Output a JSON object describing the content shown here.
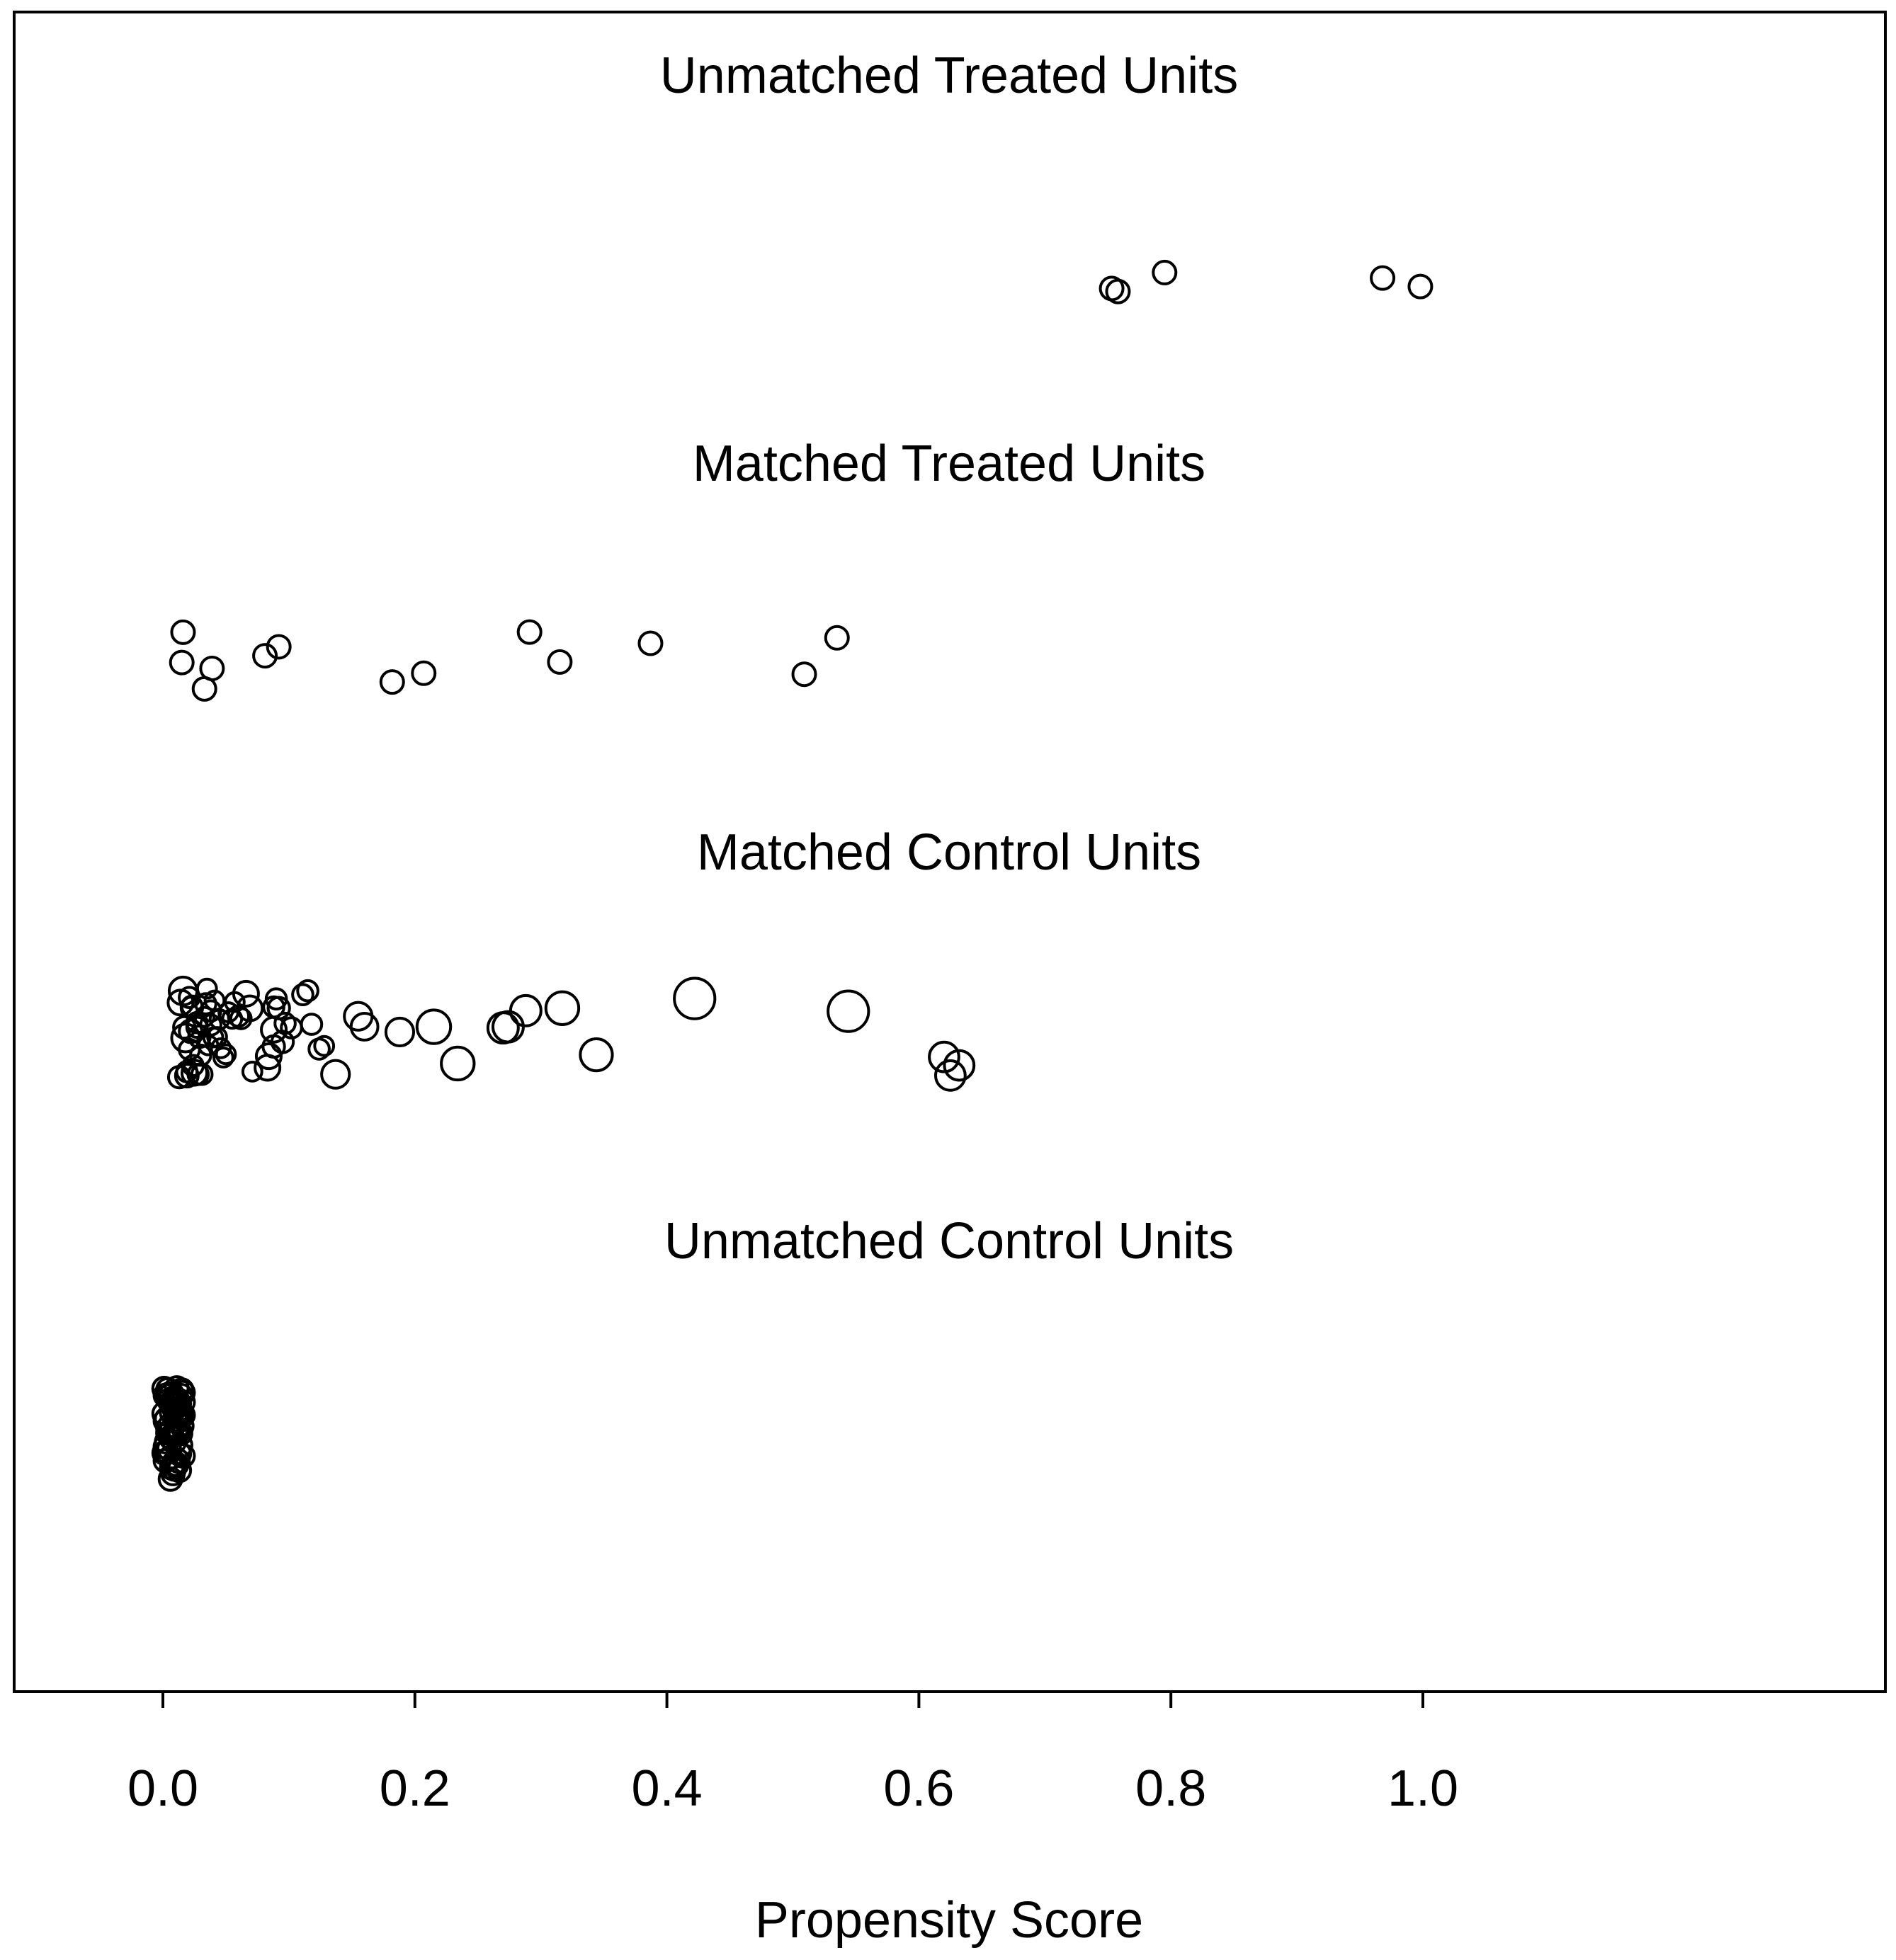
{
  "chart_data": {
    "type": "scatter",
    "title": "",
    "xlabel": "Propensity Score",
    "ylabel": "",
    "xlim": [
      -0.095,
      1.095
    ],
    "xticks": [
      "0.0",
      "0.2",
      "0.4",
      "0.6",
      "0.8",
      "1.0"
    ],
    "xtick_values": [
      0.0,
      0.2,
      0.4,
      0.6,
      0.8,
      1.0
    ],
    "grid": false,
    "legend": "none",
    "marker": "open circle, size proportional to weight",
    "groups": [
      {
        "label": "Unmatched Treated Units",
        "points": [
          {
            "x": 0.753,
            "w": 1
          },
          {
            "x": 0.758,
            "w": 1
          },
          {
            "x": 0.795,
            "w": 1
          },
          {
            "x": 0.968,
            "w": 1
          },
          {
            "x": 0.998,
            "w": 1
          }
        ]
      },
      {
        "label": "Matched Treated Units",
        "points": [
          {
            "x": 0.015,
            "w": 1
          },
          {
            "x": 0.016,
            "w": 1
          },
          {
            "x": 0.033,
            "w": 1
          },
          {
            "x": 0.039,
            "w": 1
          },
          {
            "x": 0.081,
            "w": 1
          },
          {
            "x": 0.092,
            "w": 1
          },
          {
            "x": 0.182,
            "w": 1
          },
          {
            "x": 0.207,
            "w": 1
          },
          {
            "x": 0.291,
            "w": 1
          },
          {
            "x": 0.315,
            "w": 1
          },
          {
            "x": 0.387,
            "w": 1
          },
          {
            "x": 0.509,
            "w": 1
          },
          {
            "x": 0.535,
            "w": 1
          }
        ]
      },
      {
        "label": "Matched Control Units",
        "points": [
          {
            "x": 0.018,
            "w": 1.5
          },
          {
            "x": 0.022,
            "w": 1
          },
          {
            "x": 0.014,
            "w": 1.2
          },
          {
            "x": 0.016,
            "w": 1.5
          },
          {
            "x": 0.025,
            "w": 1.2
          },
          {
            "x": 0.019,
            "w": 1
          },
          {
            "x": 0.021,
            "w": 0.8
          },
          {
            "x": 0.027,
            "w": 0.8
          },
          {
            "x": 0.031,
            "w": 0.8
          },
          {
            "x": 0.034,
            "w": 0.8
          },
          {
            "x": 0.038,
            "w": 0.8
          },
          {
            "x": 0.043,
            "w": 0.7
          },
          {
            "x": 0.046,
            "w": 0.7
          },
          {
            "x": 0.052,
            "w": 0.7
          },
          {
            "x": 0.057,
            "w": 0.7
          },
          {
            "x": 0.013,
            "w": 0.9
          },
          {
            "x": 0.017,
            "w": 0.9
          },
          {
            "x": 0.023,
            "w": 0.9
          },
          {
            "x": 0.029,
            "w": 0.9
          },
          {
            "x": 0.033,
            "w": 0.7
          },
          {
            "x": 0.041,
            "w": 0.7
          },
          {
            "x": 0.048,
            "w": 0.7
          },
          {
            "x": 0.055,
            "w": 0.7
          },
          {
            "x": 0.062,
            "w": 0.8
          },
          {
            "x": 0.066,
            "w": 1.2
          },
          {
            "x": 0.071,
            "w": 0.7
          },
          {
            "x": 0.069,
            "w": 1.2
          },
          {
            "x": 0.083,
            "w": 1.2
          },
          {
            "x": 0.088,
            "w": 1.2
          },
          {
            "x": 0.092,
            "w": 0.9
          },
          {
            "x": 0.095,
            "w": 0.9
          },
          {
            "x": 0.097,
            "w": 0.8
          },
          {
            "x": 0.084,
            "w": 1.2
          },
          {
            "x": 0.088,
            "w": 0.9
          },
          {
            "x": 0.09,
            "w": 0.8
          },
          {
            "x": 0.088,
            "w": 0.8
          },
          {
            "x": 0.102,
            "w": 0.8
          },
          {
            "x": 0.111,
            "w": 0.8
          },
          {
            "x": 0.115,
            "w": 0.8
          },
          {
            "x": 0.118,
            "w": 0.8
          },
          {
            "x": 0.124,
            "w": 0.8
          },
          {
            "x": 0.128,
            "w": 0.7
          },
          {
            "x": 0.137,
            "w": 1.5
          },
          {
            "x": 0.155,
            "w": 1.5
          },
          {
            "x": 0.16,
            "w": 1.4
          },
          {
            "x": 0.188,
            "w": 1.5
          },
          {
            "x": 0.215,
            "w": 2.2
          },
          {
            "x": 0.234,
            "w": 2.1
          },
          {
            "x": 0.27,
            "w": 1.8
          },
          {
            "x": 0.274,
            "w": 1.8
          },
          {
            "x": 0.288,
            "w": 1.8
          },
          {
            "x": 0.317,
            "w": 2.1
          },
          {
            "x": 0.344,
            "w": 2.0
          },
          {
            "x": 0.422,
            "w": 3.2
          },
          {
            "x": 0.544,
            "w": 3.2
          },
          {
            "x": 0.62,
            "w": 1.7
          },
          {
            "x": 0.632,
            "w": 1.7
          },
          {
            "x": 0.625,
            "w": 1.7
          },
          {
            "x": 0.019,
            "w": 0.8
          },
          {
            "x": 0.024,
            "w": 0.8
          },
          {
            "x": 0.03,
            "w": 0.8
          },
          {
            "x": 0.036,
            "w": 0.7
          },
          {
            "x": 0.04,
            "w": 0.7
          },
          {
            "x": 0.035,
            "w": 0.7
          },
          {
            "x": 0.06,
            "w": 0.8
          },
          {
            "x": 0.045,
            "w": 0.7
          },
          {
            "x": 0.023,
            "w": 0.8
          },
          {
            "x": 0.027,
            "w": 0.8
          },
          {
            "x": 0.021,
            "w": 0.8
          },
          {
            "x": 0.05,
            "w": 0.7
          },
          {
            "x": 0.038,
            "w": 0.8
          },
          {
            "x": 0.028,
            "w": 0.8
          }
        ]
      },
      {
        "label": "Unmatched Control Units",
        "points_note": "dense cluster of many unmatched controls near 0",
        "points": [
          {
            "x": 0.001,
            "w": 1
          },
          {
            "x": 0.002,
            "w": 1
          },
          {
            "x": 0.003,
            "w": 1
          },
          {
            "x": 0.004,
            "w": 1
          },
          {
            "x": 0.005,
            "w": 1
          },
          {
            "x": 0.006,
            "w": 1
          },
          {
            "x": 0.007,
            "w": 1
          },
          {
            "x": 0.008,
            "w": 1
          },
          {
            "x": 0.009,
            "w": 1
          },
          {
            "x": 0.01,
            "w": 1
          },
          {
            "x": 0.011,
            "w": 1
          },
          {
            "x": 0.012,
            "w": 1
          },
          {
            "x": 0.013,
            "w": 1
          },
          {
            "x": 0.014,
            "w": 1
          },
          {
            "x": 0.015,
            "w": 1
          },
          {
            "x": 0.016,
            "w": 1
          },
          {
            "x": 0.001,
            "w": 1
          },
          {
            "x": 0.003,
            "w": 1
          },
          {
            "x": 0.005,
            "w": 1
          },
          {
            "x": 0.007,
            "w": 1
          },
          {
            "x": 0.009,
            "w": 1
          },
          {
            "x": 0.011,
            "w": 1
          },
          {
            "x": 0.013,
            "w": 1
          },
          {
            "x": 0.015,
            "w": 1
          },
          {
            "x": 0.002,
            "w": 1
          },
          {
            "x": 0.004,
            "w": 1
          },
          {
            "x": 0.006,
            "w": 1
          },
          {
            "x": 0.008,
            "w": 1
          },
          {
            "x": 0.01,
            "w": 1
          },
          {
            "x": 0.012,
            "w": 1
          },
          {
            "x": 0.014,
            "w": 1
          },
          {
            "x": 0.016,
            "w": 1
          },
          {
            "x": 0.001,
            "w": 1
          },
          {
            "x": 0.004,
            "w": 1
          },
          {
            "x": 0.007,
            "w": 1
          },
          {
            "x": 0.01,
            "w": 1
          },
          {
            "x": 0.013,
            "w": 1
          },
          {
            "x": 0.016,
            "w": 1
          },
          {
            "x": 0.002,
            "w": 1
          },
          {
            "x": 0.005,
            "w": 1
          },
          {
            "x": 0.008,
            "w": 1
          },
          {
            "x": 0.011,
            "w": 1
          },
          {
            "x": 0.014,
            "w": 1
          },
          {
            "x": 0.003,
            "w": 1
          },
          {
            "x": 0.006,
            "w": 1
          },
          {
            "x": 0.009,
            "w": 1
          },
          {
            "x": 0.012,
            "w": 1
          },
          {
            "x": 0.015,
            "w": 1
          },
          {
            "x": 0.001,
            "w": 1
          },
          {
            "x": 0.006,
            "w": 1
          },
          {
            "x": 0.011,
            "w": 1
          },
          {
            "x": 0.016,
            "w": 1
          },
          {
            "x": 0.003,
            "w": 1
          },
          {
            "x": 0.008,
            "w": 1
          },
          {
            "x": 0.013,
            "w": 1
          },
          {
            "x": 0.002,
            "w": 1
          },
          {
            "x": 0.007,
            "w": 1
          },
          {
            "x": 0.012,
            "w": 1
          },
          {
            "x": 0.004,
            "w": 1
          },
          {
            "x": 0.009,
            "w": 1
          },
          {
            "x": 0.014,
            "w": 1
          },
          {
            "x": 0.005,
            "w": 1
          },
          {
            "x": 0.01,
            "w": 1
          },
          {
            "x": 0.015,
            "w": 1
          }
        ]
      }
    ]
  }
}
